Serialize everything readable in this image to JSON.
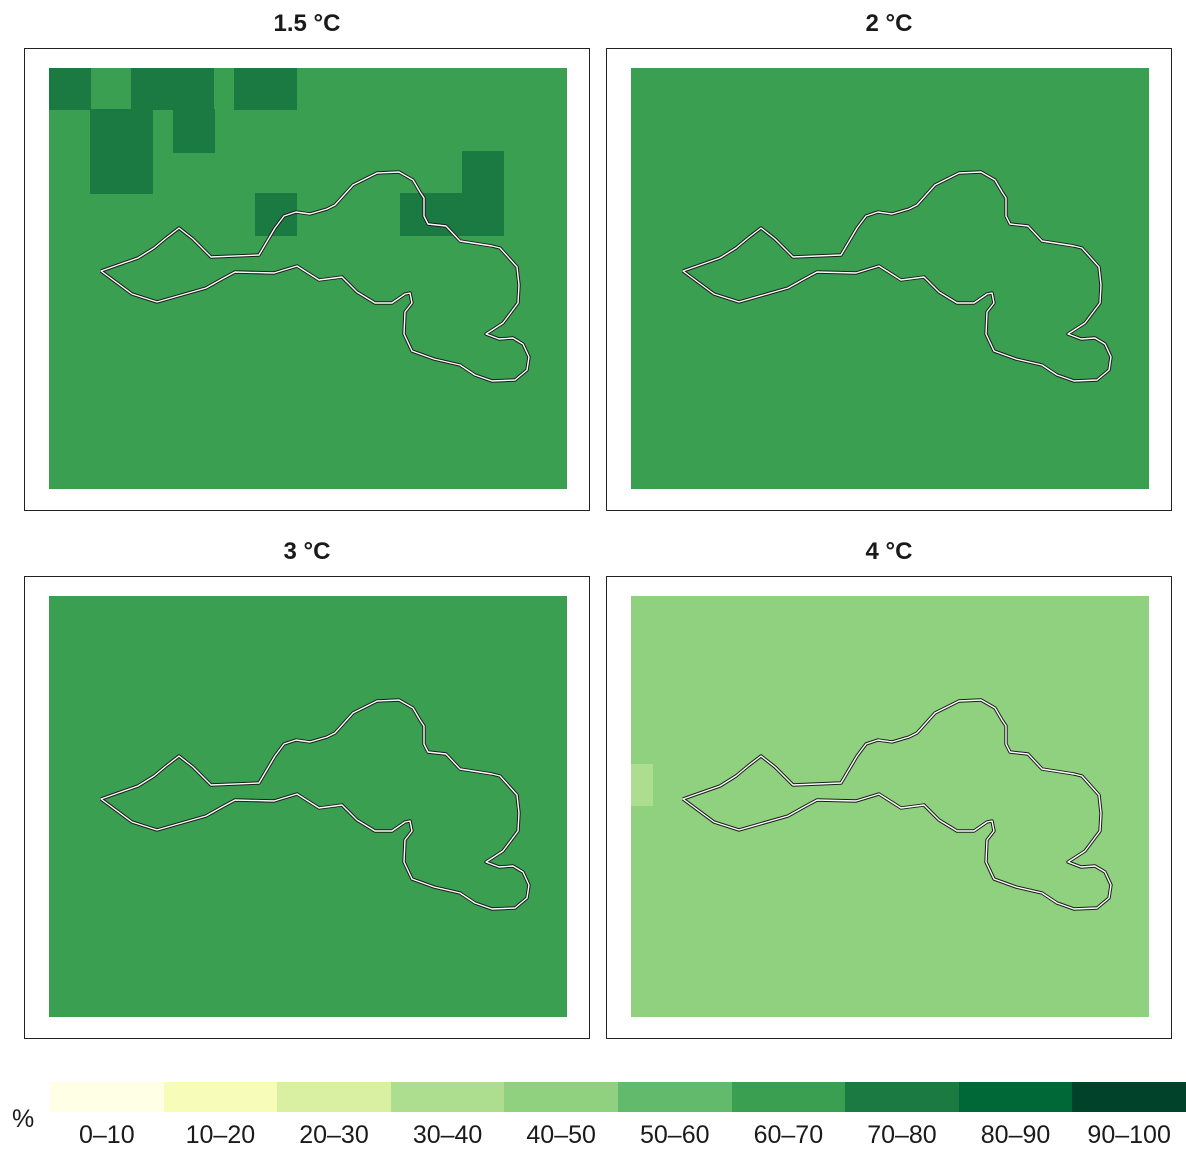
{
  "panels": [
    {
      "title": "1.5 °C",
      "base_class": "60–70",
      "cells": [
        {
          "class": "70–80",
          "region": "north-west, top edge"
        },
        {
          "class": "70–80",
          "region": "north, top edge"
        },
        {
          "class": "70–80",
          "region": "north-west interior"
        },
        {
          "class": "70–80",
          "region": "north-central"
        },
        {
          "class": "70–80",
          "region": "north-east, on boundary"
        }
      ]
    },
    {
      "title": "2 °C",
      "base_class": "60–70",
      "cells": []
    },
    {
      "title": "3 °C",
      "base_class": "60–70",
      "cells": []
    },
    {
      "title": "4 °C",
      "base_class": "40–50",
      "cells": [
        {
          "class": "30–40",
          "region": "west edge"
        }
      ]
    }
  ],
  "legend": {
    "unit": "%",
    "classes": [
      "0–10",
      "10–20",
      "20–30",
      "30–40",
      "40–50",
      "50–60",
      "60–70",
      "70–80",
      "80–90",
      "90–100"
    ],
    "colors": [
      "#ffffe5",
      "#f7fcb9",
      "#d9f0a3",
      "#addd8e",
      "#8fd17f",
      "#62bb6c",
      "#3a9f51",
      "#1b7a41",
      "#006837",
      "#00432a"
    ]
  }
}
